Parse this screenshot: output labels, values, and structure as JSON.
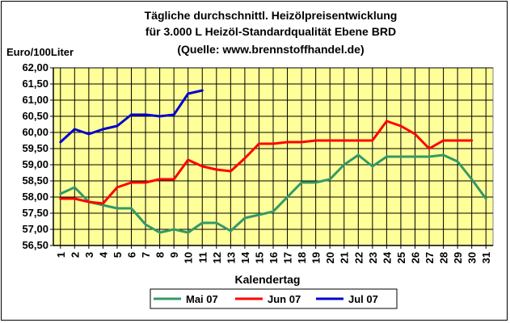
{
  "chart_data": {
    "type": "line",
    "title_lines": [
      "Tägliche durchschnittl. Heizölpreisentwicklung",
      "für 3.000 L Heizöl-Standardqualität Ebene BRD",
      "(Quelle: www.brennstoffhandel.de)"
    ],
    "ylabel": "Euro/100Liter",
    "xlabel": "Kalendertag",
    "ylim": [
      56.5,
      62.0
    ],
    "ytick_step": 0.5,
    "y_tick_labels": [
      "56,50",
      "57,00",
      "57,50",
      "58,00",
      "58,50",
      "59,00",
      "59,50",
      "60,00",
      "60,50",
      "61,00",
      "61,50",
      "62,00"
    ],
    "x": [
      1,
      2,
      3,
      4,
      5,
      6,
      7,
      8,
      9,
      10,
      11,
      12,
      13,
      14,
      15,
      16,
      17,
      18,
      19,
      20,
      21,
      22,
      23,
      24,
      25,
      26,
      27,
      28,
      29,
      30,
      31
    ],
    "grid": true,
    "plot_background": "#ffff99",
    "legend_position": "bottom",
    "series": [
      {
        "name": "Mai 07",
        "color": "#339966",
        "values": [
          58.1,
          58.3,
          57.85,
          57.75,
          57.65,
          57.65,
          57.15,
          56.9,
          57.0,
          56.9,
          57.2,
          57.2,
          56.95,
          57.35,
          57.45,
          57.55,
          58.0,
          58.45,
          58.45,
          58.55,
          59.0,
          59.3,
          58.95,
          59.25,
          59.25,
          59.25,
          59.25,
          59.3,
          59.1,
          58.55,
          57.95
        ]
      },
      {
        "name": "Jun 07",
        "color": "#ff0000",
        "values": [
          57.95,
          57.95,
          57.85,
          57.8,
          58.3,
          58.45,
          58.45,
          58.55,
          58.55,
          59.15,
          58.95,
          58.85,
          58.8,
          59.2,
          59.65,
          59.65,
          59.7,
          59.7,
          59.75,
          59.75,
          59.75,
          59.75,
          59.75,
          60.35,
          60.2,
          59.95,
          59.5,
          59.75,
          59.75,
          59.75,
          null
        ]
      },
      {
        "name": "Jul 07",
        "color": "#0000cc",
        "values": [
          59.7,
          60.1,
          59.95,
          60.1,
          60.2,
          60.55,
          60.55,
          60.5,
          60.55,
          61.2,
          61.3,
          null,
          null,
          null,
          null,
          null,
          null,
          null,
          null,
          null,
          null,
          null,
          null,
          null,
          null,
          null,
          null,
          null,
          null,
          null,
          null
        ]
      }
    ]
  }
}
